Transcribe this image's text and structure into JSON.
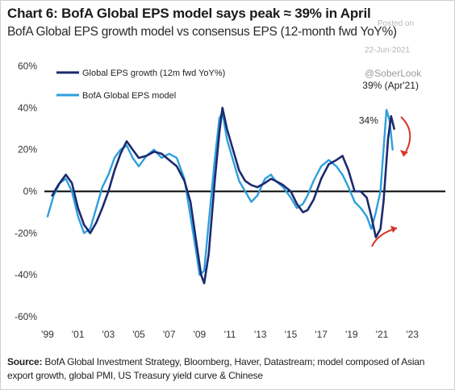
{
  "header": {
    "title": "Chart 6: BofA Global EPS model says peak ≈ 39% in April",
    "subtitle": "BofA Global EPS growth model vs consensus EPS (12-month fwd YoY%)"
  },
  "watermark": {
    "posted": "Posted on",
    "date": "22-Jun-2021",
    "handle": "@SoberLook"
  },
  "footer": {
    "source_label": "Source:",
    "source_text": " BofA Global Investment Strategy, Bloomberg, Haver, Datastream; model composed of Asian export growth, global PMI, US Treasury yield curve & Chinese"
  },
  "chart_data": {
    "type": "line",
    "xlabel": "",
    "ylabel": "",
    "xlim": [
      1999,
      2024
    ],
    "ylim": [
      -60,
      60
    ],
    "x_ticks": [
      "'99",
      "'01",
      "'03",
      "'05",
      "'07",
      "'09",
      "'11",
      "'13",
      "'15",
      "'17",
      "'19",
      "'21",
      "'23"
    ],
    "y_ticks": [
      "60%",
      "40%",
      "20%",
      "0%",
      "-20%",
      "-40%",
      "-60%"
    ],
    "grid": false,
    "zero_line": true,
    "legend_position": "top-left",
    "annotations": [
      "39% (Apr'21)",
      "34%"
    ],
    "colors": {
      "Global EPS growth (12m fwd YoY%)": "#1c2a6e",
      "BofA Global EPS model": "#2e9fdc",
      "arrows": "#d9352b"
    },
    "series": [
      {
        "name": "Global EPS growth (12m fwd YoY%)",
        "points": [
          [
            1999.3,
            -2
          ],
          [
            1999.7,
            3
          ],
          [
            2000.2,
            8
          ],
          [
            2000.6,
            4
          ],
          [
            2001.0,
            -8
          ],
          [
            2001.4,
            -16
          ],
          [
            2001.8,
            -20
          ],
          [
            2002.2,
            -15
          ],
          [
            2002.6,
            -8
          ],
          [
            2003.0,
            0
          ],
          [
            2003.4,
            10
          ],
          [
            2003.8,
            18
          ],
          [
            2004.2,
            24
          ],
          [
            2004.6,
            20
          ],
          [
            2005.0,
            16
          ],
          [
            2005.5,
            17
          ],
          [
            2006.0,
            19
          ],
          [
            2006.5,
            18
          ],
          [
            2007.0,
            15
          ],
          [
            2007.5,
            12
          ],
          [
            2008.0,
            5
          ],
          [
            2008.4,
            -5
          ],
          [
            2008.8,
            -25
          ],
          [
            2009.1,
            -40
          ],
          [
            2009.3,
            -44
          ],
          [
            2009.6,
            -30
          ],
          [
            2010.0,
            5
          ],
          [
            2010.3,
            28
          ],
          [
            2010.5,
            40
          ],
          [
            2010.8,
            30
          ],
          [
            2011.2,
            20
          ],
          [
            2011.6,
            10
          ],
          [
            2012.0,
            5
          ],
          [
            2012.4,
            3
          ],
          [
            2012.8,
            2
          ],
          [
            2013.3,
            4
          ],
          [
            2013.7,
            6
          ],
          [
            2014.0,
            5
          ],
          [
            2014.5,
            3
          ],
          [
            2015.0,
            0
          ],
          [
            2015.4,
            -6
          ],
          [
            2015.8,
            -10
          ],
          [
            2016.1,
            -9
          ],
          [
            2016.5,
            -4
          ],
          [
            2017.0,
            6
          ],
          [
            2017.5,
            13
          ],
          [
            2018.0,
            15
          ],
          [
            2018.4,
            17
          ],
          [
            2018.8,
            10
          ],
          [
            2019.2,
            0
          ],
          [
            2019.6,
            0
          ],
          [
            2020.0,
            -3
          ],
          [
            2020.3,
            -12
          ],
          [
            2020.6,
            -22
          ],
          [
            2020.9,
            -18
          ],
          [
            2021.1,
            -5
          ],
          [
            2021.4,
            25
          ],
          [
            2021.6,
            36
          ],
          [
            2021.8,
            30
          ]
        ]
      },
      {
        "name": "BofA Global EPS model",
        "points": [
          [
            1999.0,
            -12
          ],
          [
            1999.4,
            -2
          ],
          [
            1999.8,
            4
          ],
          [
            2000.2,
            6
          ],
          [
            2000.6,
            0
          ],
          [
            2001.0,
            -12
          ],
          [
            2001.4,
            -20
          ],
          [
            2001.8,
            -18
          ],
          [
            2002.2,
            -8
          ],
          [
            2002.6,
            2
          ],
          [
            2003.0,
            8
          ],
          [
            2003.4,
            16
          ],
          [
            2003.8,
            20
          ],
          [
            2004.2,
            22
          ],
          [
            2004.6,
            16
          ],
          [
            2005.0,
            12
          ],
          [
            2005.5,
            17
          ],
          [
            2006.0,
            20
          ],
          [
            2006.5,
            16
          ],
          [
            2007.0,
            18
          ],
          [
            2007.5,
            16
          ],
          [
            2008.0,
            6
          ],
          [
            2008.4,
            -12
          ],
          [
            2008.8,
            -30
          ],
          [
            2009.0,
            -40
          ],
          [
            2009.3,
            -38
          ],
          [
            2009.6,
            -15
          ],
          [
            2010.0,
            15
          ],
          [
            2010.3,
            35
          ],
          [
            2010.5,
            38
          ],
          [
            2010.8,
            25
          ],
          [
            2011.2,
            15
          ],
          [
            2011.6,
            5
          ],
          [
            2012.0,
            0
          ],
          [
            2012.4,
            -5
          ],
          [
            2012.8,
            -2
          ],
          [
            2013.3,
            6
          ],
          [
            2013.7,
            8
          ],
          [
            2014.0,
            5
          ],
          [
            2014.5,
            2
          ],
          [
            2015.0,
            -3
          ],
          [
            2015.4,
            -8
          ],
          [
            2015.8,
            -6
          ],
          [
            2016.1,
            -2
          ],
          [
            2016.5,
            5
          ],
          [
            2017.0,
            12
          ],
          [
            2017.5,
            15
          ],
          [
            2018.0,
            12
          ],
          [
            2018.4,
            8
          ],
          [
            2018.8,
            2
          ],
          [
            2019.2,
            -5
          ],
          [
            2019.6,
            -8
          ],
          [
            2020.0,
            -12
          ],
          [
            2020.3,
            -18
          ],
          [
            2020.6,
            -10
          ],
          [
            2020.9,
            0
          ],
          [
            2021.1,
            20
          ],
          [
            2021.3,
            39
          ],
          [
            2021.5,
            34
          ],
          [
            2021.7,
            20
          ]
        ]
      }
    ]
  }
}
